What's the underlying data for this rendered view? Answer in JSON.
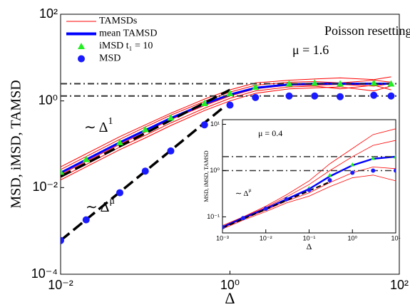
{
  "chart_data": [
    {
      "type": "line",
      "log_x": true,
      "log_y": true,
      "xlabel": "Δ",
      "ylabel": "MSD, iMSD, TAMSD",
      "xlim": [
        0.01,
        100
      ],
      "ylim": [
        0.0001,
        100
      ],
      "xticks": [
        {
          "value": 0.01,
          "label": "10⁻²"
        },
        {
          "value": 1,
          "label": "10⁰"
        },
        {
          "value": 100,
          "label": "10²"
        }
      ],
      "yticks": [
        {
          "value": 0.0001,
          "label": "10⁻⁴"
        },
        {
          "value": 0.01,
          "label": "10⁻²"
        },
        {
          "value": 1,
          "label": "10⁰"
        },
        {
          "value": 100,
          "label": "10²"
        }
      ],
      "legend": "upper left",
      "x": [
        0.01,
        0.02,
        0.05,
        0.1,
        0.2,
        0.5,
        1,
        2,
        5,
        10,
        20,
        50,
        80
      ],
      "series": [
        {
          "name": "TAMSDs",
          "color": "#ff0000",
          "style": "lines",
          "lines": [
            [
              0.03,
              0.06,
              0.15,
              0.28,
              0.52,
              1.1,
              1.8,
              2.6,
              3.0,
              3.2,
              3.4,
              3.1,
              3.6
            ],
            [
              0.026,
              0.052,
              0.13,
              0.25,
              0.47,
              0.98,
              1.6,
              2.3,
              2.7,
              2.8,
              2.6,
              3.0,
              2.7
            ],
            [
              0.02,
              0.04,
              0.1,
              0.19,
              0.37,
              0.78,
              1.3,
              1.9,
              2.3,
              2.3,
              2.4,
              2.2,
              2.5
            ],
            [
              0.017,
              0.034,
              0.086,
              0.16,
              0.31,
              0.68,
              1.15,
              1.7,
              2.1,
              2.2,
              1.9,
              2.3,
              1.8
            ],
            [
              0.015,
              0.03,
              0.075,
              0.14,
              0.27,
              0.6,
              1.0,
              1.5,
              1.9,
              2.0,
              2.1,
              1.7,
              2.2
            ]
          ]
        },
        {
          "name": "mean TAMSD",
          "color": "#0000ff",
          "style": "line",
          "values": [
            0.022,
            0.044,
            0.11,
            0.21,
            0.4,
            0.85,
            1.4,
            2.0,
            2.4,
            2.5,
            2.5,
            2.5,
            2.5
          ]
        },
        {
          "name": "iMSD t₁ = 10",
          "color": "#22ee22",
          "style": "marker",
          "marker": "triangle",
          "values": [
            0.023,
            0.045,
            0.11,
            0.22,
            0.41,
            0.88,
            1.5,
            2.1,
            2.5,
            2.6,
            2.5,
            2.6,
            2.5
          ]
        },
        {
          "name": "MSD",
          "color": "#1a1aff",
          "style": "marker",
          "marker": "circle",
          "values": [
            0.0006,
            0.0018,
            0.0076,
            0.024,
            0.07,
            0.28,
            0.8,
            1.2,
            1.3,
            1.3,
            1.25,
            1.35,
            1.3
          ]
        }
      ],
      "hlines": [
        2.5,
        1.3
      ],
      "ref_lines": [
        {
          "x": [
            0.01,
            1
          ],
          "values": [
            0.018,
            1.8
          ]
        },
        {
          "x": [
            0.01,
            0.8
          ],
          "values": [
            0.0006,
            0.66
          ]
        }
      ],
      "annotations": [
        {
          "text": "Poisson resetting"
        },
        {
          "text": "μ = 1.6"
        },
        {
          "base": "∼ Δ",
          "sup": "1"
        },
        {
          "base": "∼ Δ",
          "sup": "μ"
        }
      ]
    },
    {
      "type": "line",
      "log_x": true,
      "log_y": true,
      "xlabel": "Δ",
      "ylabel": "MSD, iMSD, TAMSD",
      "xlim": [
        0.001,
        10
      ],
      "ylim": [
        0.045,
        12.6
      ],
      "xticks": [
        {
          "value": 0.001,
          "label": "10⁻³"
        },
        {
          "value": 0.01,
          "label": "10⁻²"
        },
        {
          "value": 0.1,
          "label": "10⁻¹"
        },
        {
          "value": 1,
          "label": "10⁰"
        },
        {
          "value": 10,
          "label": "10¹"
        }
      ],
      "yticks": [
        {
          "value": 0.1,
          "label": "10⁻¹"
        },
        {
          "value": 1,
          "label": "10⁰"
        },
        {
          "value": 10,
          "label": "10¹"
        }
      ],
      "x": [
        0.001,
        0.003,
        0.01,
        0.03,
        0.1,
        0.3,
        1,
        3,
        10
      ],
      "series": [
        {
          "color": "#ff0000",
          "style": "lines",
          "lines": [
            [
              0.065,
              0.1,
              0.17,
              0.3,
              0.6,
              1.4,
              3,
              6,
              8
            ],
            [
              0.062,
              0.098,
              0.16,
              0.27,
              0.5,
              1.0,
              2.0,
              3.5,
              4.5
            ],
            [
              0.058,
              0.09,
              0.14,
              0.22,
              0.33,
              0.55,
              0.9,
              1.2,
              1.1
            ],
            [
              0.055,
              0.085,
              0.13,
              0.2,
              0.28,
              0.45,
              0.7,
              0.8,
              0.6
            ]
          ]
        },
        {
          "color": "#0000ff",
          "style": "line",
          "values": [
            0.06,
            0.095,
            0.15,
            0.24,
            0.4,
            0.75,
            1.3,
            1.8,
            2.0
          ]
        },
        {
          "color": "#22ee22",
          "style": "marker",
          "marker": "triangle",
          "values": [
            0.06,
            0.095,
            0.15,
            0.25,
            0.42,
            0.8,
            1.35,
            1.85,
            2.0
          ]
        },
        {
          "color": "#1a1aff",
          "style": "marker",
          "marker": "circle",
          "values": [
            0.06,
            0.094,
            0.15,
            0.24,
            0.38,
            0.62,
            0.9,
            1.0,
            1.0
          ]
        }
      ],
      "hlines": [
        2.0,
        1.0
      ],
      "ref_lines": [
        {
          "x": [
            0.001,
            0.3
          ],
          "values": [
            0.058,
            0.57
          ]
        }
      ],
      "annotations": [
        {
          "text": "μ = 0.4"
        },
        {
          "base": "∼ Δ",
          "sup": "μ"
        }
      ]
    }
  ]
}
